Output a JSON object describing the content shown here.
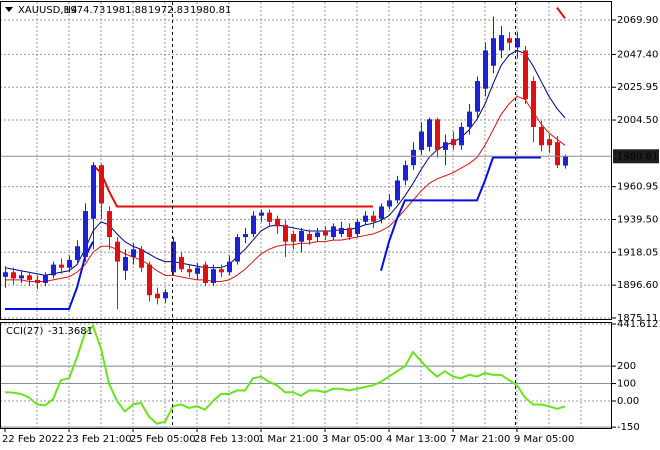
{
  "chart_data": [
    {
      "type": "candlestick",
      "title": "XAUUSD,H4",
      "categories": [
        "22 Feb 2022",
        null,
        null,
        null,
        null,
        null,
        null,
        null,
        "23 Feb 21:00",
        null,
        null,
        null,
        null,
        null,
        null,
        null,
        "25 Feb 05:00",
        null,
        null,
        null,
        null,
        null,
        null,
        null,
        "28 Feb 13:00",
        null,
        null,
        null,
        null,
        null,
        null,
        null,
        "1 Mar 21:00",
        null,
        null,
        null,
        null,
        null,
        null,
        null,
        "3 Mar 05:00",
        null,
        null,
        null,
        null,
        null,
        null,
        null,
        "4 Mar 13:00",
        null,
        null,
        null,
        null,
        null,
        null,
        null,
        "7 Mar 21:00",
        null,
        null,
        null,
        null,
        null,
        null,
        null,
        "9 Mar 05:00",
        null,
        null,
        null,
        null,
        null,
        null
      ],
      "open": [
        1902,
        1905,
        1901,
        1903,
        1900,
        1898,
        1903,
        1910,
        1908,
        1913,
        1915,
        1940,
        1975,
        1945,
        1925,
        1906,
        1915,
        1920,
        1910,
        1891,
        1888,
        1905,
        1915,
        1907,
        1904,
        1910,
        1898,
        1907,
        1905,
        1912,
        1928,
        1930,
        1942,
        1944,
        1940,
        1936,
        1930,
        1925,
        1930,
        1928,
        1932,
        1928,
        1930,
        1934,
        1930,
        1938,
        1942,
        1940,
        1948,
        1952,
        1965,
        1975,
        1985,
        1987,
        2005,
        1985,
        1992,
        1988,
        2000,
        2010,
        2025,
        2040,
        2050,
        2058,
        2052,
        2050,
        2030,
        2000,
        1992,
        1990,
        1974.73
      ],
      "high": [
        1909,
        1908,
        1906,
        1905,
        1903,
        1905,
        1912,
        1914,
        1916,
        1926,
        1950,
        1977,
        1976,
        1948,
        1928,
        1920,
        1924,
        1922,
        1912,
        1895,
        1894,
        1928,
        1918,
        1910,
        1911,
        1912,
        1910,
        1910,
        1916,
        1930,
        1934,
        1945,
        1946,
        1946,
        1942,
        1939,
        1932,
        1934,
        1933,
        1934,
        1935,
        1937,
        1938,
        1937,
        1940,
        1945,
        1945,
        1950,
        1956,
        1968,
        1978,
        1990,
        2003,
        2006,
        2006,
        1995,
        1997,
        2003,
        2015,
        2033,
        2055,
        2072,
        2066,
        2062,
        2062,
        2053,
        2033,
        2004,
        1995,
        1994,
        1981.88
      ],
      "low": [
        1895,
        1897,
        1898,
        1896,
        1894,
        1896,
        1901,
        1904,
        1905,
        1910,
        1912,
        1920,
        1940,
        1920,
        1881,
        1900,
        1910,
        1905,
        1886,
        1884,
        1885,
        1903,
        1905,
        1902,
        1900,
        1896,
        1896,
        1902,
        1903,
        1910,
        1924,
        1928,
        1938,
        1935,
        1930,
        1915,
        1920,
        1918,
        1923,
        1925,
        1926,
        1926,
        1928,
        1926,
        1928,
        1936,
        1934,
        1937,
        1946,
        1950,
        1962,
        1972,
        1982,
        1984,
        1980,
        1975,
        1985,
        1985,
        1995,
        2005,
        2020,
        2035,
        2045,
        2050,
        2045,
        2015,
        1990,
        1984,
        1983,
        1973,
        1972.83
      ],
      "close": [
        1905,
        1901,
        1903,
        1900,
        1898,
        1903,
        1910,
        1908,
        1913,
        1922,
        1945,
        1975,
        1950,
        1928,
        1912,
        1915,
        1920,
        1908,
        1890,
        1888,
        1892,
        1925,
        1907,
        1905,
        1908,
        1898,
        1907,
        1905,
        1912,
        1928,
        1930,
        1942,
        1944,
        1938,
        1935,
        1925,
        1925,
        1932,
        1926,
        1931,
        1929,
        1935,
        1934,
        1928,
        1938,
        1942,
        1938,
        1948,
        1952,
        1965,
        1975,
        1985,
        1997,
        2005,
        1985,
        1990,
        1988,
        2000,
        2010,
        2030,
        2050,
        2058,
        2060,
        2055,
        2058,
        2018,
        2000,
        1988,
        1988,
        1975,
        1980.81
      ],
      "up_color": "#1f1fd8",
      "down_color": "#e01010",
      "series": [
        {
          "color": "#000080",
          "width": 1,
          "values": [
            1908,
            1907,
            1906,
            1905,
            1904,
            1903,
            1904,
            1905,
            1906,
            1910,
            1920,
            1932,
            1938,
            1936,
            1930,
            1925,
            1922,
            1920,
            1917,
            1914,
            1912,
            1912,
            1911,
            1910,
            1909,
            1908,
            1908,
            1908,
            1910,
            1915,
            1920,
            1926,
            1932,
            1935,
            1936,
            1935,
            1934,
            1933,
            1932,
            1932,
            1932,
            1932,
            1933,
            1933,
            1934,
            1936,
            1937,
            1939,
            1942,
            1948,
            1955,
            1963,
            1972,
            1980,
            1985,
            1988,
            1990,
            1993,
            1998,
            2005,
            2015,
            2028,
            2040,
            2047,
            2050,
            2048,
            2040,
            2030,
            2020,
            2012,
            2006
          ]
        },
        {
          "color": "#e01010",
          "width": 1,
          "values": [
            1900,
            1900,
            1900,
            1899,
            1899,
            1899,
            1900,
            1901,
            1902,
            1905,
            1910,
            1918,
            1922,
            1922,
            1920,
            1917,
            1915,
            1913,
            1910,
            1906,
            1903,
            1903,
            1902,
            1901,
            1900,
            1900,
            1899,
            1899,
            1900,
            1903,
            1907,
            1912,
            1917,
            1920,
            1922,
            1923,
            1923,
            1924,
            1924,
            1925,
            1925,
            1926,
            1926,
            1927,
            1928,
            1929,
            1930,
            1932,
            1935,
            1940,
            1946,
            1952,
            1958,
            1963,
            1966,
            1968,
            1970,
            1973,
            1976,
            1980,
            1988,
            1998,
            2008,
            2015,
            2020,
            2018,
            2010,
            2002,
            1996,
            1992,
            1988
          ]
        },
        {
          "color": "#0010e0",
          "width": 2,
          "values": [
            1881,
            1881,
            1881,
            1881,
            1881,
            1881,
            1881,
            1881,
            1881,
            1895,
            1915,
            1925,
            null,
            null,
            null,
            null,
            null,
            null,
            null,
            null,
            null,
            null,
            null,
            null,
            null,
            null,
            null,
            null,
            null,
            null,
            null,
            null,
            null,
            null,
            null,
            null,
            null,
            null,
            null,
            null,
            null,
            null,
            null,
            null,
            null,
            null,
            null,
            1906,
            1925,
            1940,
            1952,
            1952,
            1952,
            1952,
            1952,
            1952,
            1952,
            1952,
            1952,
            1952,
            1965,
            1980,
            1980,
            1980,
            1980,
            1980,
            1980,
            1980,
            null,
            null,
            null
          ]
        },
        {
          "color": "#e01010",
          "width": 2,
          "values": [
            null,
            null,
            null,
            null,
            null,
            null,
            null,
            null,
            null,
            null,
            null,
            1975,
            1970,
            1958,
            1948,
            1948,
            1948,
            1948,
            1948,
            1948,
            1948,
            1948,
            1948,
            1948,
            1948,
            1948,
            1948,
            1948,
            1948,
            1948,
            1948,
            1948,
            1948,
            1948,
            1948,
            1948,
            1948,
            1948,
            1948,
            1948,
            1948,
            1948,
            1948,
            1948,
            1948,
            1948,
            1948,
            null,
            null,
            null,
            null,
            null,
            null,
            null,
            null,
            null,
            null,
            null,
            null,
            null,
            null,
            null,
            null,
            null,
            null,
            null,
            null,
            null,
            null,
            2078,
            2071
          ]
        }
      ],
      "ylim": [
        1875.11,
        2081.67
      ],
      "yticks": [
        {
          "value": 2069.9,
          "label": "2069.90"
        },
        {
          "value": 2047.4,
          "label": "2047.40"
        },
        2025.95,
        {
          "value": 2004.5,
          "label": "2004.50"
        },
        1960.95,
        {
          "value": 1939.5,
          "label": "1939.50"
        },
        1918.05,
        {
          "value": 1896.6,
          "label": "1896.60"
        },
        1875.11
      ],
      "grid": true
    },
    {
      "type": "line",
      "title": "CCI(27)",
      "series": [
        {
          "color": "#6be21e",
          "values": [
            50,
            48,
            40,
            20,
            -20,
            -25,
            10,
            120,
            130,
            250,
            390,
            430,
            300,
            100,
            0,
            -60,
            -20,
            -10,
            -90,
            -130,
            -120,
            -30,
            -20,
            -40,
            -30,
            -50,
            0,
            40,
            40,
            60,
            60,
            130,
            140,
            110,
            90,
            50,
            50,
            30,
            60,
            60,
            50,
            70,
            70,
            60,
            70,
            80,
            90,
            110,
            140,
            170,
            200,
            280,
            230,
            180,
            140,
            170,
            140,
            130,
            150,
            140,
            160,
            150,
            150,
            120,
            90,
            20,
            -20,
            -20,
            -30,
            -45,
            -31.3681
          ]
        }
      ],
      "ylim": [
        -155,
        441.6121
      ],
      "yticks": [
        441.6121,
        200,
        100,
        {
          "value": 0,
          "label": "0.00"
        },
        -150
      ],
      "levels": [
        200,
        100,
        -150
      ],
      "level_color": "#6a8caf",
      "grid": true
    }
  ]
}
